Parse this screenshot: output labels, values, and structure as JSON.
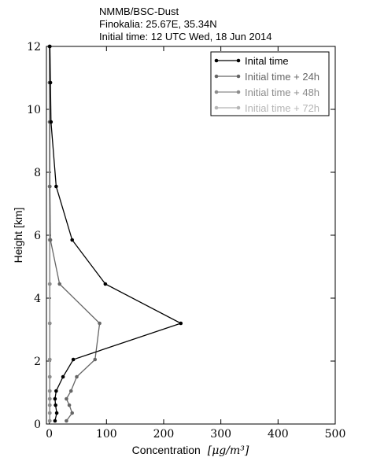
{
  "chart_data": {
    "type": "line",
    "title_lines": [
      "NMMB/BSC-Dust",
      "Finokalia: 25.67E, 35.34N",
      "Initial time: 12 UTC Wed, 18 Jun 2014"
    ],
    "xlabel": "Concentration",
    "xlabel_unit": "[μg/m³]",
    "ylabel": "Height [km]",
    "xlim": [
      -5,
      500
    ],
    "ylim": [
      0,
      12
    ],
    "xticks": [
      0,
      100,
      200,
      300,
      400,
      500
    ],
    "xtick_labels": [
      "0",
      "100",
      "200",
      "300",
      "400",
      "500"
    ],
    "yticks": [
      0,
      2,
      4,
      6,
      8,
      10,
      12
    ],
    "ytick_labels": [
      "0",
      "2",
      "4",
      "6",
      "8",
      "10",
      "12"
    ],
    "legend_position": "top-right",
    "series": [
      {
        "name": "Inital time",
        "color": "#000000",
        "points": [
          [
            10,
            0.1
          ],
          [
            13,
            0.35
          ],
          [
            11,
            0.6
          ],
          [
            10,
            0.8
          ],
          [
            12,
            1.05
          ],
          [
            24,
            1.5
          ],
          [
            42,
            2.05
          ],
          [
            230,
            3.2
          ],
          [
            98,
            4.45
          ],
          [
            40,
            5.85
          ],
          [
            12,
            7.55
          ],
          [
            3,
            9.6
          ],
          [
            2,
            10.85
          ],
          [
            1,
            12.0
          ]
        ]
      },
      {
        "name": "Initial time + 24h",
        "color": "#666666",
        "points": [
          [
            30,
            0.1
          ],
          [
            40,
            0.35
          ],
          [
            35,
            0.6
          ],
          [
            30,
            0.8
          ],
          [
            38,
            1.05
          ],
          [
            48,
            1.5
          ],
          [
            80,
            2.05
          ],
          [
            88,
            3.2
          ],
          [
            18,
            4.45
          ],
          [
            2,
            5.85
          ],
          [
            1,
            7.55
          ],
          [
            1,
            9.6
          ],
          [
            0.5,
            10.85
          ],
          [
            0.3,
            12.0
          ]
        ]
      },
      {
        "name": "Initial time + 48h",
        "color": "#8c8c8c",
        "points": [
          [
            1,
            0.1
          ],
          [
            1,
            0.35
          ],
          [
            1,
            0.6
          ],
          [
            1,
            0.8
          ],
          [
            1,
            1.05
          ],
          [
            1,
            1.5
          ],
          [
            1,
            2.05
          ],
          [
            1,
            3.2
          ],
          [
            1,
            4.45
          ],
          [
            1,
            5.85
          ],
          [
            0.5,
            7.55
          ],
          [
            0.5,
            9.6
          ],
          [
            0.3,
            10.85
          ],
          [
            0.2,
            12.0
          ]
        ]
      },
      {
        "name": "Initial time + 72h",
        "color": "#b5b5b5",
        "points": [
          [
            0.5,
            0.1
          ],
          [
            0.5,
            0.35
          ],
          [
            0.5,
            0.6
          ],
          [
            0.5,
            0.8
          ],
          [
            0.5,
            1.05
          ],
          [
            0.5,
            1.5
          ],
          [
            0.5,
            2.05
          ],
          [
            0.5,
            3.2
          ],
          [
            0.5,
            4.45
          ],
          [
            0.5,
            5.85
          ],
          [
            0.3,
            7.55
          ],
          [
            0.3,
            9.6
          ],
          [
            0.2,
            10.85
          ],
          [
            0.1,
            12.0
          ]
        ]
      }
    ]
  }
}
